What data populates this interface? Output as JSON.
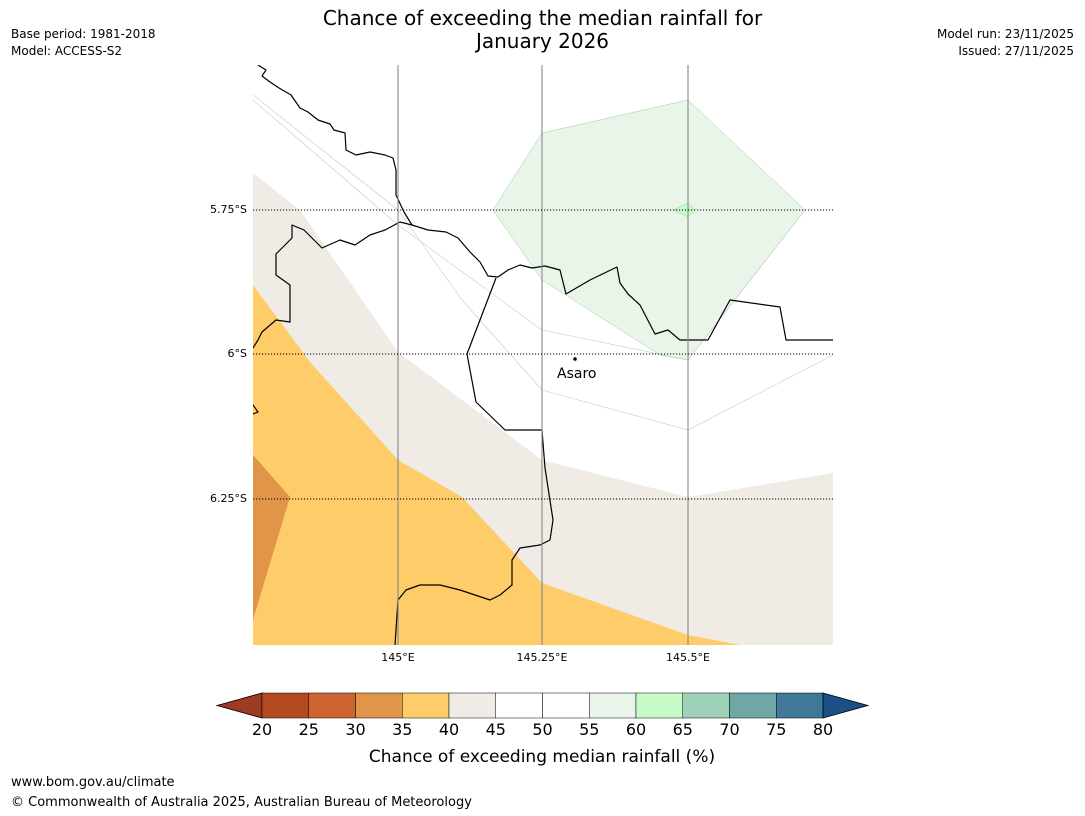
{
  "header": {
    "title_line1": "Chance of exceeding the median rainfall for",
    "title_line2": "January 2026",
    "base_period": "Base period: 1981-2018",
    "model": "Model: ACCESS-S2",
    "model_run": "Model run: 23/11/2025",
    "issued": "Issued: 27/11/2025"
  },
  "map": {
    "latitude_labels": [
      "5.75°S",
      "6°S",
      "6.25°S"
    ],
    "longitude_labels": [
      "145°E",
      "145.25°E",
      "145.5°E"
    ],
    "place": "Asaro",
    "colors": {
      "band_35_40": "#fecd69",
      "band_30_35": "#e09548",
      "band_40_45": "#f0ebe5",
      "band_55_60": "#e9f5e8",
      "band_60_65": "#c7fcc9",
      "border": "#000000",
      "gridline": "#808080"
    }
  },
  "colorbar": {
    "ticks": [
      "20",
      "25",
      "30",
      "35",
      "40",
      "45",
      "50",
      "55",
      "60",
      "65",
      "70",
      "75",
      "80"
    ],
    "colors": [
      "#9c3a22",
      "#b34a22",
      "#cd6430",
      "#e09548",
      "#fecd69",
      "#f0ebe5",
      "#ffffff",
      "#ffffff",
      "#e9f5e8",
      "#c7fcc9",
      "#9ed1b8",
      "#6fa6a6",
      "#3f7899",
      "#1b4f86"
    ],
    "label": "Chance of exceeding median rainfall (%)"
  },
  "footer": {
    "url": "www.bom.gov.au/climate",
    "copyright": "© Commonwealth of Australia 2025, Australian Bureau of Meteorology"
  }
}
